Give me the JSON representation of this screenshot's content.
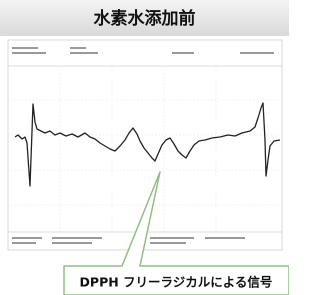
{
  "header": {
    "title": "水素水添加前"
  },
  "callout": {
    "text": "DPPH フリーラジカルによる信号"
  }
}
